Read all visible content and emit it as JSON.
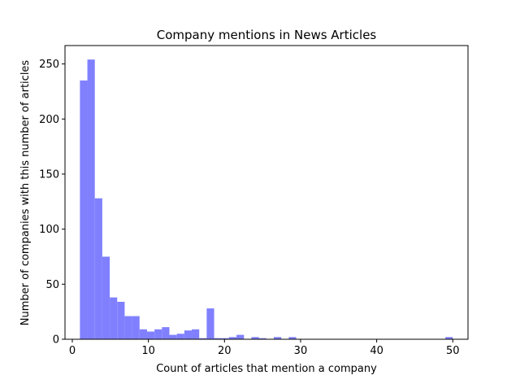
{
  "chart_data": {
    "type": "bar",
    "title": "Company mentions in News Articles",
    "xlabel": "Count of articles that mention a company",
    "ylabel": "Number of companies with this number of articles",
    "xlim": [
      -0.96,
      52.0
    ],
    "ylim": [
      0,
      266.7
    ],
    "x_ticks": [
      0,
      10,
      20,
      30,
      40,
      50
    ],
    "y_ticks": [
      0,
      50,
      100,
      150,
      200,
      250
    ],
    "bin_width": 0.98,
    "bar_color": "#8080ff",
    "grid": false,
    "bins": [
      {
        "x": 1.0,
        "y": 235
      },
      {
        "x": 1.98,
        "y": 254
      },
      {
        "x": 2.96,
        "y": 128
      },
      {
        "x": 3.94,
        "y": 75
      },
      {
        "x": 4.92,
        "y": 38
      },
      {
        "x": 5.9,
        "y": 34
      },
      {
        "x": 6.88,
        "y": 21
      },
      {
        "x": 7.86,
        "y": 21
      },
      {
        "x": 8.84,
        "y": 9
      },
      {
        "x": 9.82,
        "y": 7
      },
      {
        "x": 10.8,
        "y": 9
      },
      {
        "x": 11.78,
        "y": 11
      },
      {
        "x": 12.76,
        "y": 4
      },
      {
        "x": 13.74,
        "y": 5
      },
      {
        "x": 14.72,
        "y": 8
      },
      {
        "x": 15.7,
        "y": 9
      },
      {
        "x": 16.68,
        "y": 1
      },
      {
        "x": 17.66,
        "y": 28
      },
      {
        "x": 18.64,
        "y": 1
      },
      {
        "x": 19.62,
        "y": 1
      },
      {
        "x": 20.6,
        "y": 2
      },
      {
        "x": 21.58,
        "y": 4
      },
      {
        "x": 22.56,
        "y": 0
      },
      {
        "x": 23.54,
        "y": 2
      },
      {
        "x": 24.52,
        "y": 1
      },
      {
        "x": 25.5,
        "y": 0
      },
      {
        "x": 26.48,
        "y": 2
      },
      {
        "x": 27.46,
        "y": 0
      },
      {
        "x": 28.44,
        "y": 2
      },
      {
        "x": 49.02,
        "y": 2
      }
    ]
  }
}
